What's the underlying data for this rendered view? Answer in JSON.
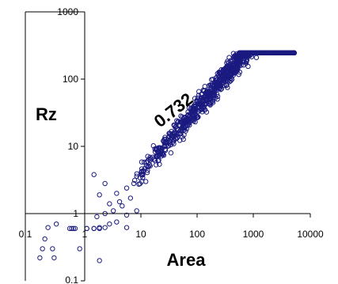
{
  "chart_data": {
    "type": "scatter",
    "xlabel": "Area",
    "ylabel": "Rz",
    "annotation": "0.732",
    "x_scale": "log",
    "y_scale": "log",
    "xlim": [
      0.1,
      10000
    ],
    "ylim": [
      0.1,
      1000
    ],
    "x_ticks": [
      "0.1",
      "1",
      "10",
      "100",
      "1000",
      "10000"
    ],
    "y_ticks": [
      "1000",
      "100",
      "10",
      "1",
      "0.1"
    ],
    "grid": false,
    "legend": "none",
    "marker_color": "#1a1a80",
    "series": [
      {
        "points": [
          [
            0.25,
            0.62
          ],
          [
            0.35,
            0.7
          ],
          [
            0.22,
            0.42
          ],
          [
            0.3,
            0.3
          ],
          [
            0.2,
            0.3
          ],
          [
            0.32,
            0.22
          ],
          [
            0.18,
            0.22
          ],
          [
            0.6,
            0.6
          ],
          [
            0.65,
            0.6
          ],
          [
            0.7,
            0.6
          ],
          [
            0.75,
            0.6
          ],
          [
            1.2,
            0.6
          ],
          [
            1.6,
            0.6
          ],
          [
            2.0,
            0.6
          ],
          [
            0.9,
            0.3
          ],
          [
            2.0,
            0.2
          ],
          [
            1.2,
            0.6
          ],
          [
            1.6,
            0.6
          ],
          [
            2.0,
            0.62
          ],
          [
            2.5,
            0.62
          ],
          [
            3.0,
            0.7
          ],
          [
            4.0,
            0.75
          ],
          [
            6.0,
            0.62
          ],
          [
            1.8,
            0.9
          ],
          [
            2.5,
            1.0
          ],
          [
            3.5,
            1.1
          ],
          [
            5.0,
            1.3
          ],
          [
            3.0,
            1.4
          ],
          [
            4.5,
            1.5
          ],
          [
            7.0,
            1.7
          ],
          [
            9.0,
            1.1
          ],
          [
            6.0,
            0.95
          ],
          [
            2.0,
            1.9
          ],
          [
            2.5,
            2.8
          ],
          [
            4.0,
            2.0
          ],
          [
            6.0,
            2.4
          ],
          [
            8.0,
            2.8
          ],
          [
            1.6,
            3.8
          ],
          [
            9.0,
            3.6
          ],
          [
            11.0,
            4.2
          ],
          [
            13.0,
            3.0
          ]
        ]
      }
    ]
  }
}
